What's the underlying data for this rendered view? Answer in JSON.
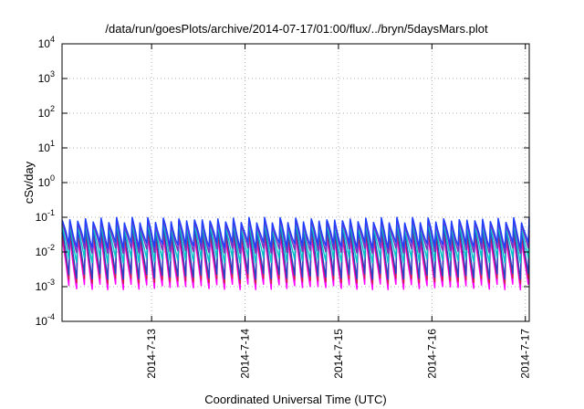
{
  "chart_data": {
    "type": "line",
    "title": "/data/run/goesPlots/archive/2014-07-17/01:00/flux/../bryn/5daysMars.plot",
    "xlabel": "Coordinated Universal Time (UTC)",
    "ylabel": "cSv/day",
    "y_scale": "log",
    "ylim": [
      "1e-4",
      "1e4"
    ],
    "xlim": [
      "2014-07-12 01:00",
      "2014-07-17 01:00"
    ],
    "grid": "dotted",
    "y_ticks": [
      {
        "base": "10",
        "exp": "-4"
      },
      {
        "base": "10",
        "exp": "-3"
      },
      {
        "base": "10",
        "exp": "-2"
      },
      {
        "base": "10",
        "exp": "-1"
      },
      {
        "base": "10",
        "exp": "0"
      },
      {
        "base": "10",
        "exp": "1"
      },
      {
        "base": "10",
        "exp": "2"
      },
      {
        "base": "10",
        "exp": "3"
      },
      {
        "base": "10",
        "exp": "4"
      }
    ],
    "x_ticks": [
      {
        "label": "2014-7-13",
        "date": "2014-07-13 00:00"
      },
      {
        "label": "2014-7-14",
        "date": "2014-07-14 00:00"
      },
      {
        "label": "2014-7-15",
        "date": "2014-07-15 00:00"
      },
      {
        "label": "2014-7-16",
        "date": "2014-07-16 00:00"
      },
      {
        "label": "2014-7-17",
        "date": "2014-07-17 00:00"
      }
    ],
    "sawtooth_period_hours": 2,
    "series": [
      {
        "color": "#ff00ff",
        "peak": 0.025,
        "trough": 0.0006
      },
      {
        "color": "#cc2244",
        "peak": 0.035,
        "trough": 0.0009
      },
      {
        "color": "#2244cc",
        "peak": 0.05,
        "trough": 0.0012
      },
      {
        "color": "#00c8c8",
        "peak": 0.06,
        "trough": 0.004
      },
      {
        "color": "#7b2fbe",
        "peak": 0.075,
        "trough": 0.008
      },
      {
        "color": "#1f3fff",
        "peak": 0.085,
        "trough": 0.012
      }
    ]
  }
}
